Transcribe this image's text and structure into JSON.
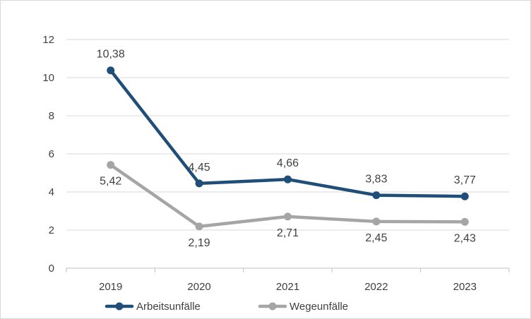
{
  "chart_data": {
    "type": "line",
    "title": "",
    "xlabel": "",
    "ylabel": "",
    "categories": [
      "2019",
      "2020",
      "2021",
      "2022",
      "2023"
    ],
    "ylim": [
      0,
      12
    ],
    "yticks": [
      "0",
      "2",
      "4",
      "6",
      "8",
      "10",
      "12"
    ],
    "grid": true,
    "legend_position": "bottom",
    "series": [
      {
        "name": "Arbeitsunfälle",
        "values": [
          10.38,
          4.45,
          4.66,
          3.83,
          3.77
        ],
        "labels": [
          "10,38",
          "4,45",
          "4,66",
          "3,83",
          "3,77"
        ],
        "color": "#1f4e79"
      },
      {
        "name": "Wegeunfälle",
        "values": [
          5.42,
          2.19,
          2.71,
          2.45,
          2.43
        ],
        "labels": [
          "5,42",
          "2,19",
          "2,71",
          "2,45",
          "2,43"
        ],
        "color": "#a5a5a5"
      }
    ]
  }
}
